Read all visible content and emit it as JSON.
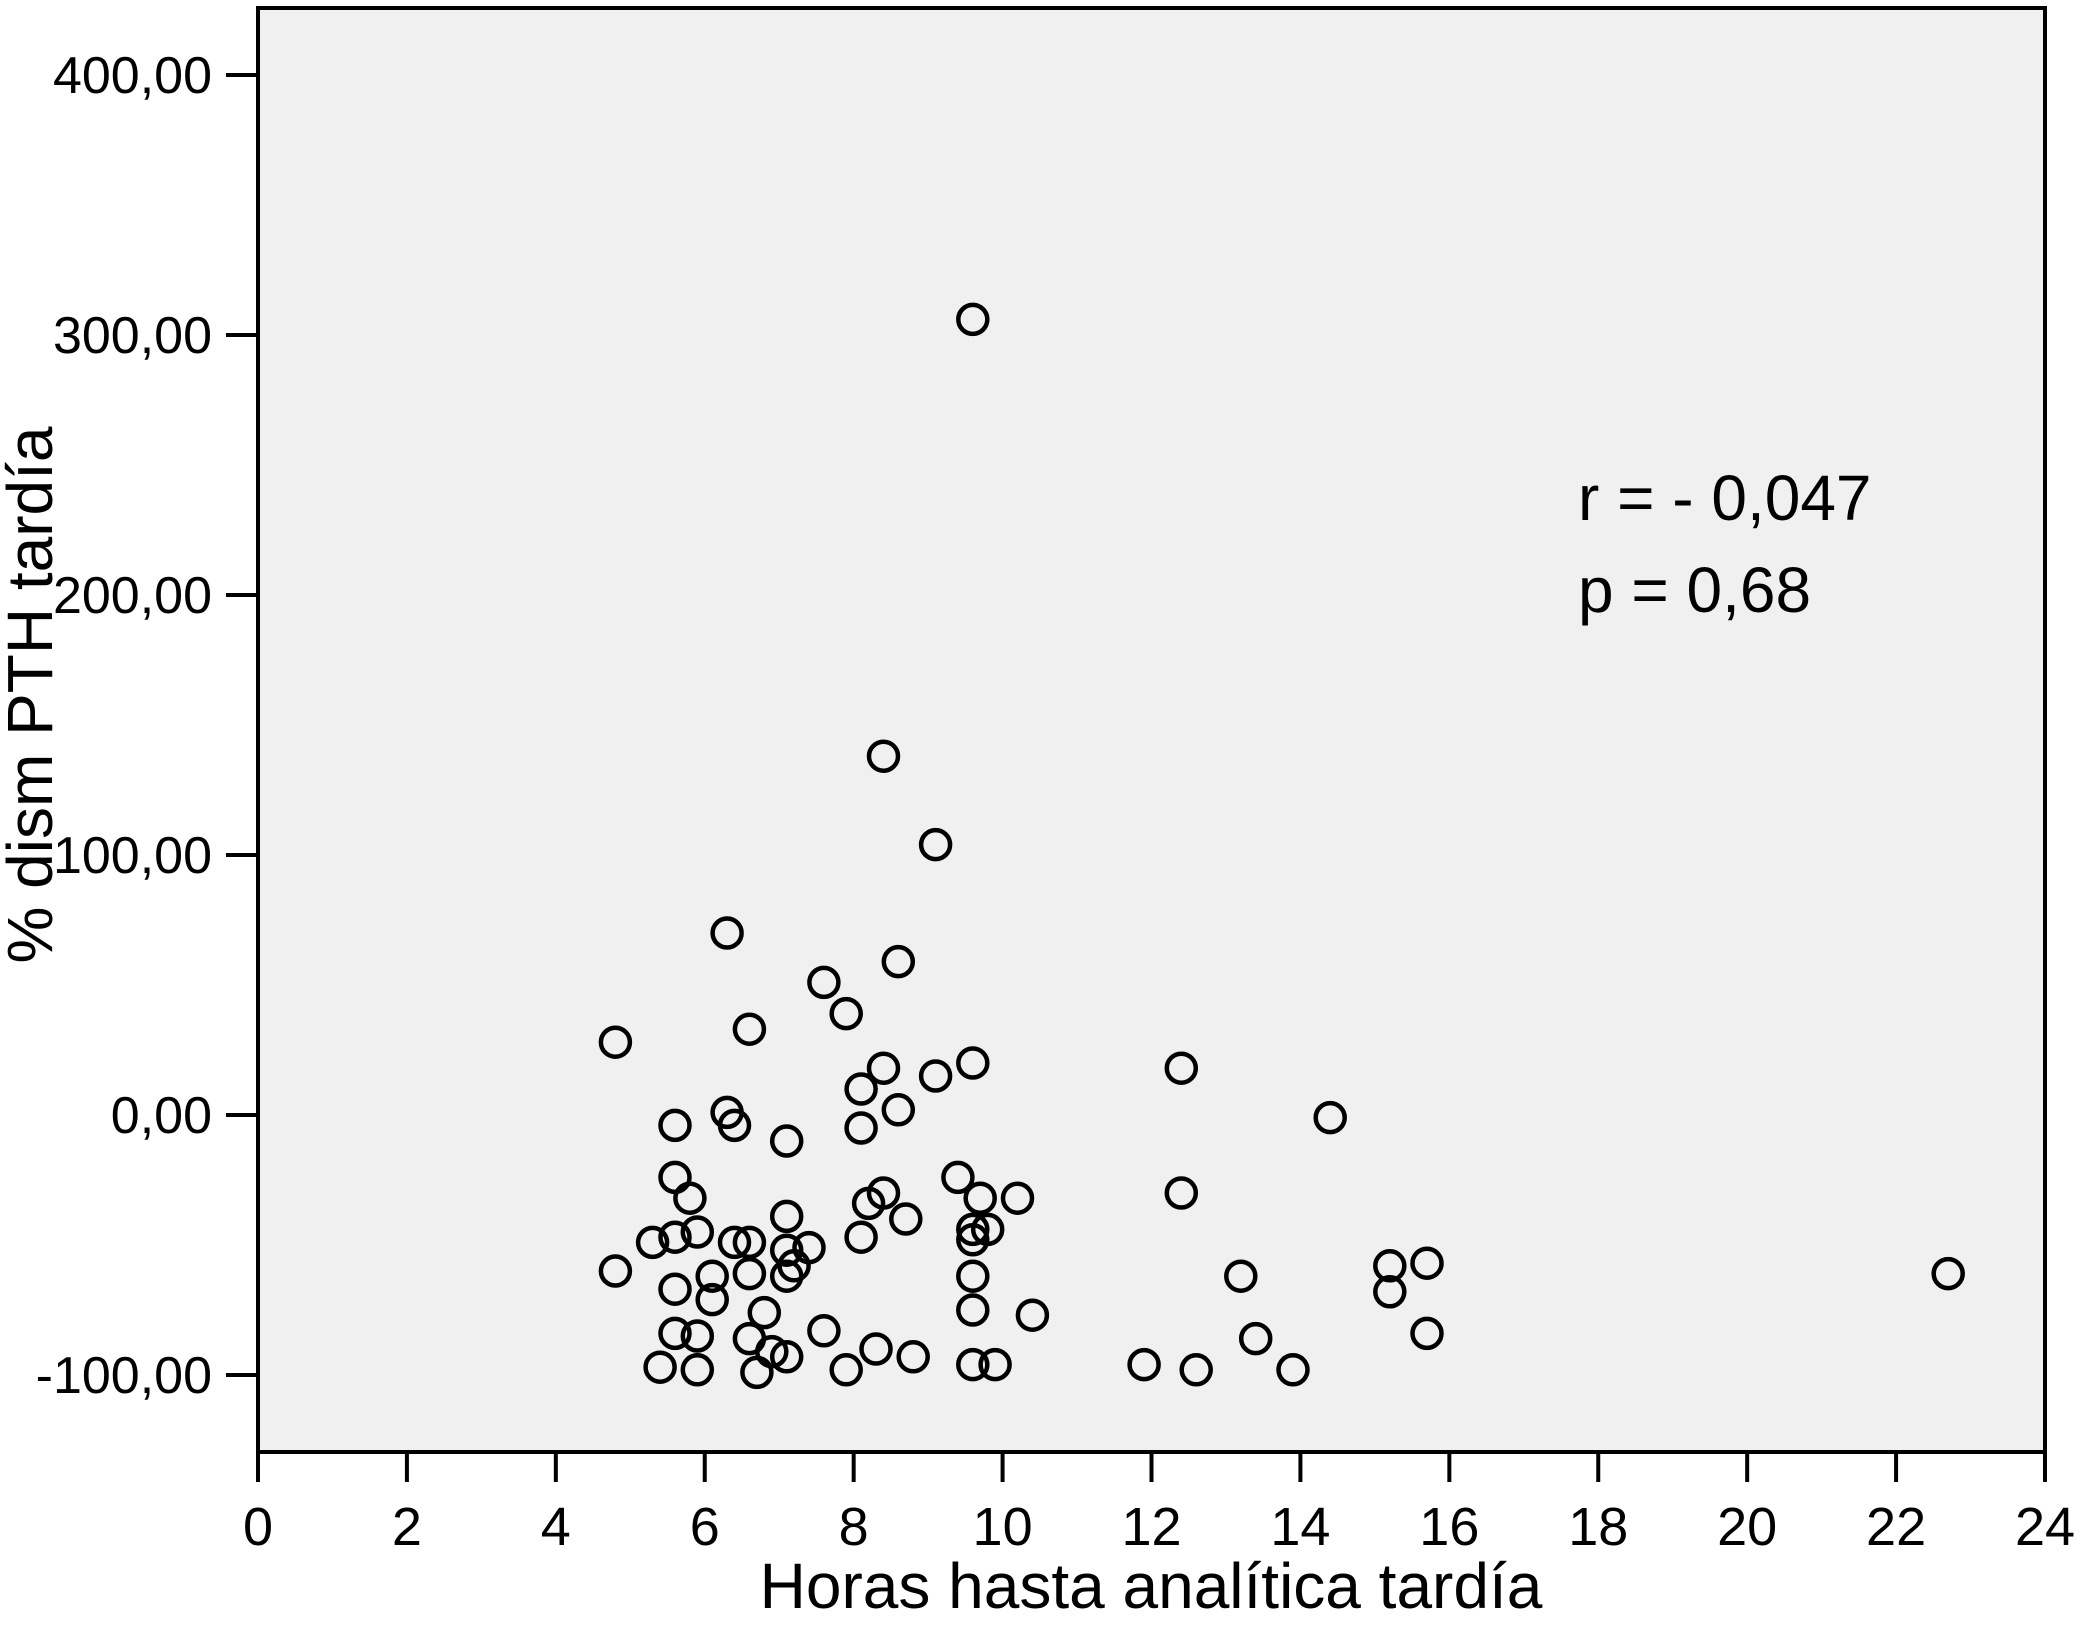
{
  "figure": {
    "background_color": "#ffffff",
    "plot_background_color": "#f0f0f0",
    "axis_color": "#000000",
    "marker_color": "#000000"
  },
  "chart_data": {
    "type": "scatter",
    "title": "",
    "xlabel": "Horas hasta analítica tardía",
    "ylabel": "% dism PTH tardía",
    "annotation": {
      "line1": "r = - 0,047",
      "line2": "p = 0,68"
    },
    "legend": null,
    "grid": false,
    "marker": {
      "shape": "open-circle",
      "radius_px": 14.5,
      "stroke_px": 4.5
    },
    "x_axis": {
      "min": 0,
      "max": 24,
      "ticks": [
        {
          "value": 0,
          "label": "0"
        },
        {
          "value": 2,
          "label": "2"
        },
        {
          "value": 4,
          "label": "4"
        },
        {
          "value": 6,
          "label": "6"
        },
        {
          "value": 8,
          "label": "8"
        },
        {
          "value": 10,
          "label": "10"
        },
        {
          "value": 12,
          "label": "12"
        },
        {
          "value": 14,
          "label": "14"
        },
        {
          "value": 16,
          "label": "16"
        },
        {
          "value": 18,
          "label": "18"
        },
        {
          "value": 20,
          "label": "20"
        },
        {
          "value": 22,
          "label": "22"
        },
        {
          "value": 24,
          "label": "24"
        }
      ]
    },
    "y_axis": {
      "min": -129.6,
      "max": 425.8,
      "ticks": [
        {
          "value": 400,
          "label": "400,00"
        },
        {
          "value": 300,
          "label": "300,00"
        },
        {
          "value": 200,
          "label": "200,00"
        },
        {
          "value": 100,
          "label": "100,00"
        },
        {
          "value": 0,
          "label": "0,00"
        },
        {
          "value": -100,
          "label": "-100,00"
        }
      ]
    },
    "points": [
      [
        9.6,
        306
      ],
      [
        8.4,
        138
      ],
      [
        9.1,
        104
      ],
      [
        6.3,
        70
      ],
      [
        8.6,
        59
      ],
      [
        7.6,
        51
      ],
      [
        7.9,
        39
      ],
      [
        6.6,
        33
      ],
      [
        4.8,
        28
      ],
      [
        8.4,
        18
      ],
      [
        9.6,
        20
      ],
      [
        12.4,
        18
      ],
      [
        9.1,
        15
      ],
      [
        8.1,
        10
      ],
      [
        8.6,
        2
      ],
      [
        6.3,
        1
      ],
      [
        14.4,
        -1
      ],
      [
        5.6,
        -4
      ],
      [
        6.4,
        -4
      ],
      [
        8.1,
        -5
      ],
      [
        7.1,
        -10
      ],
      [
        5.6,
        -24
      ],
      [
        9.4,
        -24
      ],
      [
        8.4,
        -30
      ],
      [
        12.4,
        -30
      ],
      [
        5.8,
        -32
      ],
      [
        9.7,
        -32
      ],
      [
        10.2,
        -32
      ],
      [
        8.2,
        -34
      ],
      [
        7.1,
        -39
      ],
      [
        8.7,
        -40
      ],
      [
        9.6,
        -44
      ],
      [
        9.8,
        -44
      ],
      [
        5.9,
        -45
      ],
      [
        5.6,
        -47
      ],
      [
        8.1,
        -47
      ],
      [
        9.6,
        -48
      ],
      [
        5.3,
        -49
      ],
      [
        6.4,
        -49
      ],
      [
        6.6,
        -49
      ],
      [
        7.4,
        -51
      ],
      [
        7.1,
        -52
      ],
      [
        15.7,
        -57
      ],
      [
        15.2,
        -58
      ],
      [
        7.2,
        -58
      ],
      [
        4.8,
        -60
      ],
      [
        22.7,
        -61
      ],
      [
        6.6,
        -61
      ],
      [
        6.1,
        -62
      ],
      [
        7.1,
        -62
      ],
      [
        9.6,
        -62
      ],
      [
        13.2,
        -62
      ],
      [
        5.6,
        -67
      ],
      [
        15.2,
        -68
      ],
      [
        6.1,
        -71
      ],
      [
        9.6,
        -75
      ],
      [
        6.8,
        -76
      ],
      [
        10.4,
        -77
      ],
      [
        7.6,
        -83
      ],
      [
        5.6,
        -84
      ],
      [
        15.7,
        -84
      ],
      [
        5.9,
        -85
      ],
      [
        6.6,
        -86
      ],
      [
        13.4,
        -86
      ],
      [
        8.3,
        -90
      ],
      [
        6.9,
        -91
      ],
      [
        7.1,
        -93
      ],
      [
        8.8,
        -93
      ],
      [
        9.6,
        -96
      ],
      [
        9.9,
        -96
      ],
      [
        11.9,
        -96
      ],
      [
        5.4,
        -97
      ],
      [
        5.9,
        -98
      ],
      [
        7.9,
        -98
      ],
      [
        12.6,
        -98
      ],
      [
        13.9,
        -98
      ],
      [
        6.7,
        -99
      ]
    ]
  }
}
